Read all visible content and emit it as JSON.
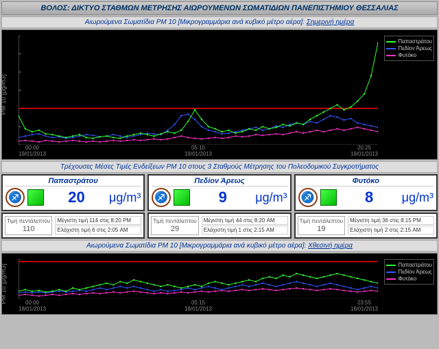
{
  "title": "ΒΟΛΟΣ: ΔΙΚΤΥΟ ΣΤΑΘΜΩΝ ΜΕΤΡΗΣΗΣ ΑΙΩΡΟΥΜΕΝΩΝ ΣΩΜΑΤΙΔΙΩΝ ΠΑΝΕΠΙΣΤΗΜΙΟΥ ΘΕΣΣΑΛΙΑΣ",
  "section1_a": "Αιωρούμενα Σωματίδια PM 10 [Μικρογραμμάρια ανά κυβικό μέτρο αέρα]: ",
  "section1_b": "Σημερινή ημέρα",
  "section2": "Τρέχουσες Μέσες Τιμές Ενδείξεων PM 10 στους 3 Σταθμούς Μέτρησης του Πολεοδομικού Συγκροτήματος",
  "section3_a": "Αιωρούμενα Σωματίδια PM 10 [Μικρογραμμάρια ανά κυβικό μέτρο αέρα]: ",
  "section3_b": "Χθεσινή ημέρα",
  "ylabel": "PM 10 [μg/m3]",
  "legend": [
    "Παπαστράτου",
    "Πεδίον Άρεως",
    "Φυτόκο"
  ],
  "colors": {
    "s1": "#33ff33",
    "s2": "#3355ff",
    "s3": "#ff33cc",
    "threshold": "#ff0000",
    "bg": "#000000",
    "axis": "#888888"
  },
  "chart1": {
    "ylim": [
      0,
      150
    ],
    "yticks": [
      0,
      25,
      50,
      75,
      100,
      125,
      150
    ],
    "xlabels": [
      [
        "00:00",
        "19/01/2013"
      ],
      [
        "05:10",
        "19/01/2013"
      ],
      [
        "",
        "20:25"
      ],
      [
        "",
        "19/01/2013"
      ]
    ],
    "xlabels_simple": [
      "00:00\n19/01/2013",
      "05:10\n19/01/2013",
      "20:25\n19/01/2013"
    ],
    "threshold": 50,
    "series": {
      "s1": [
        40,
        22,
        18,
        20,
        15,
        14,
        12,
        10,
        12,
        14,
        10,
        9,
        11,
        12,
        10,
        9,
        12,
        14,
        16,
        14,
        12,
        15,
        18,
        16,
        20,
        32,
        48,
        35,
        25,
        22,
        18,
        20,
        16,
        18,
        22,
        20,
        25,
        22,
        24,
        28,
        26,
        30,
        28,
        35,
        40,
        45,
        50,
        55,
        48,
        52,
        60,
        70,
        95,
        140
      ],
      "s2": [
        10,
        12,
        14,
        15,
        12,
        10,
        11,
        9,
        10,
        12,
        14,
        13,
        11,
        12,
        14,
        12,
        10,
        12,
        14,
        16,
        15,
        14,
        20,
        28,
        40,
        42,
        35,
        25,
        20,
        18,
        15,
        16,
        18,
        20,
        22,
        24,
        20,
        22,
        26,
        24,
        28,
        30,
        28,
        32,
        30,
        35,
        40,
        38,
        34,
        36,
        30,
        28,
        26,
        24
      ],
      "s3": [
        5,
        6,
        5,
        4,
        6,
        5,
        4,
        5,
        6,
        5,
        4,
        5,
        4,
        5,
        6,
        5,
        6,
        7,
        6,
        7,
        8,
        7,
        8,
        10,
        12,
        10,
        9,
        8,
        9,
        10,
        9,
        10,
        12,
        11,
        12,
        14,
        13,
        14,
        15,
        14,
        16,
        18,
        16,
        18,
        20,
        18,
        20,
        22,
        20,
        22,
        24,
        22,
        20,
        18
      ]
    }
  },
  "chart2": {
    "ylim": [
      0,
      50
    ],
    "yticks": [
      0,
      50
    ],
    "xlabels_simple": [
      "00:00\n18/01/2013",
      "05:15\n18/01/2013",
      "23:55\n18/01/2013"
    ],
    "threshold": 47,
    "series": {
      "s1": [
        10,
        12,
        10,
        11,
        9,
        10,
        12,
        10,
        14,
        12,
        14,
        16,
        18,
        20,
        18,
        22,
        20,
        24,
        22,
        20,
        18,
        16,
        18,
        16,
        14,
        16,
        18,
        16,
        20,
        22,
        20,
        18,
        20,
        22,
        24,
        22,
        26,
        28,
        26,
        30,
        28,
        32,
        30,
        28,
        26,
        28,
        30,
        32,
        30,
        28,
        26,
        24,
        22,
        20
      ],
      "s2": [
        8,
        9,
        8,
        9,
        8,
        9,
        10,
        9,
        10,
        11,
        10,
        12,
        14,
        12,
        14,
        16,
        14,
        16,
        14,
        12,
        10,
        12,
        10,
        11,
        12,
        14,
        12,
        14,
        16,
        14,
        12,
        14,
        16,
        18,
        16,
        18,
        20,
        18,
        16,
        18,
        20,
        22,
        20,
        18,
        16,
        18,
        20,
        18,
        16,
        14,
        12,
        14,
        16,
        14
      ],
      "s3": [
        5,
        6,
        5,
        4,
        5,
        6,
        5,
        6,
        7,
        6,
        7,
        8,
        7,
        8,
        9,
        8,
        9,
        10,
        9,
        8,
        7,
        8,
        7,
        8,
        9,
        8,
        9,
        10,
        9,
        10,
        11,
        10,
        11,
        12,
        11,
        12,
        13,
        12,
        11,
        12,
        13,
        14,
        13,
        12,
        11,
        12,
        13,
        12,
        11,
        10,
        9,
        10,
        11,
        10
      ]
    }
  },
  "stations": [
    {
      "name": "Παπαστράτου",
      "value": 20,
      "unit": "μg/m³",
      "fivemin_label": "Τιμή πεντάλεπτου",
      "fivemin": 110,
      "max": "Μέγιστη τιμή 114 στις 8:20 PM",
      "min": "Ελάχιστη τιμή 6 στις 2:05 AM"
    },
    {
      "name": "Πεδίον Άρεως",
      "value": 9,
      "unit": "μg/m³",
      "fivemin_label": "Τιμή πεντάλεπτου",
      "fivemin": 29,
      "max": "Μέγιστη τιμή 44 στις 8:20 AM",
      "min": "Ελάχιστη τιμή 1 στις 2:15 AM"
    },
    {
      "name": "Φυτόκο",
      "value": 8,
      "unit": "μg/m³",
      "fivemin_label": "Τιμή πεντάλεπτου",
      "fivemin": 19,
      "max": "Μέγιστη τιμή 36 στις 8:15 PM",
      "min": "Ελάχιστη τιμή 2 στις 2:15 AM"
    }
  ]
}
